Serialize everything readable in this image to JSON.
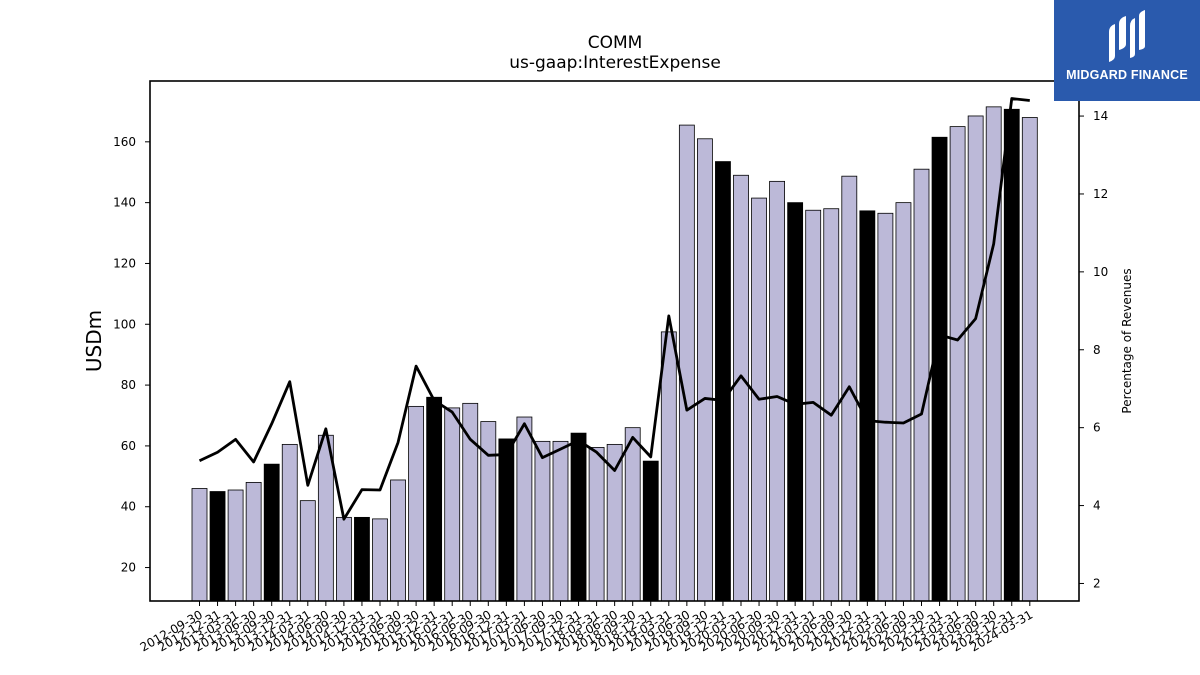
{
  "chart_data": {
    "type": "bar",
    "title": "COMM",
    "subtitle": "us-gaap:InterestExpense",
    "ylabel": "USDm",
    "y2label": "Percentage of Revenues",
    "ylim": [
      9,
      180
    ],
    "y2lim": [
      1.55,
      14.9
    ],
    "yticks": [
      20,
      40,
      60,
      80,
      100,
      120,
      140,
      160
    ],
    "y2ticks": [
      2,
      4,
      6,
      8,
      10,
      12,
      14
    ],
    "categories": [
      "2012-09-30",
      "2012-12-31",
      "2013-03-31",
      "2013-06-30",
      "2013-09-30",
      "2013-12-31",
      "2014-03-31",
      "2014-06-30",
      "2014-09-30",
      "2014-12-31",
      "2015-03-31",
      "2015-06-30",
      "2015-09-30",
      "2015-12-31",
      "2016-03-31",
      "2016-06-30",
      "2016-09-30",
      "2016-12-31",
      "2017-03-31",
      "2017-06-30",
      "2017-09-30",
      "2017-12-31",
      "2018-03-31",
      "2018-06-30",
      "2018-09-30",
      "2018-12-31",
      "2019-03-31",
      "2019-06-30",
      "2019-09-30",
      "2019-12-31",
      "2020-03-31",
      "2020-06-30",
      "2020-09-30",
      "2020-12-31",
      "2021-03-31",
      "2021-06-30",
      "2021-09-30",
      "2021-12-31",
      "2022-03-31",
      "2022-06-30",
      "2022-09-30",
      "2022-12-31",
      "2023-03-31",
      "2023-06-30",
      "2023-09-30",
      "2023-12-31",
      "2024-03-31"
    ],
    "xtick_labels": [
      "2012-09-30",
      "2012-12-31",
      "2013-03-31",
      "2013-06-30",
      "2013-09-30",
      "2013-12-31",
      "2014-03-31",
      "2014-06-30",
      "2014-09-30",
      "2014-12-31",
      "2015-03-31",
      "2015-06-30",
      "2015-09-30",
      "2015-12-31",
      "2016-03-31",
      "2016-06-30",
      "2016-09-30",
      "2016-12-31",
      "2017-03-31",
      "2017-06-30",
      "2017-09-30",
      "2017-12-31",
      "2018-03-31",
      "2018-06-30",
      "2018-09-30",
      "2018-12-31",
      "2019-03-31",
      "2019-06-30",
      "2019-09-30",
      "2019-12-31",
      "2020-03-31",
      "2020-06-30",
      "2020-09-30",
      "2020-12-31",
      "2021-03-31",
      "2021-06-30",
      "2021-09-30",
      "2021-12-31",
      "2022-03-31",
      "2022-06-30",
      "2022-09-30",
      "2022-12-31",
      "2023-03-31",
      "2023-06-30",
      "2023-09-30",
      "2023-12-31",
      "2024-03-31"
    ],
    "series": [
      {
        "type": "bar",
        "axis": "left",
        "values": [
          46,
          45,
          45.5,
          48,
          54,
          60.5,
          42,
          63.5,
          36.5,
          36.5,
          36,
          48.8,
          73,
          76,
          72.5,
          74,
          68,
          62.3,
          69.5,
          61.5,
          61.5,
          64.2,
          59.5,
          60.5,
          66,
          55,
          97.5,
          165.5,
          161,
          153.5,
          149,
          141.5,
          147,
          140,
          137.5,
          138,
          148.7,
          137.3,
          136.5,
          140,
          151,
          161.5,
          165,
          168.5,
          171.5,
          170.7,
          168
        ],
        "highlighted": [
          false,
          true,
          false,
          false,
          true,
          false,
          false,
          false,
          false,
          true,
          false,
          false,
          false,
          true,
          false,
          false,
          false,
          true,
          false,
          false,
          false,
          true,
          false,
          false,
          false,
          true,
          false,
          false,
          false,
          true,
          false,
          false,
          false,
          true,
          false,
          false,
          false,
          true,
          false,
          false,
          false,
          true,
          false,
          false,
          false,
          true,
          false
        ]
      },
      {
        "type": "line",
        "axis": "right",
        "values": [
          5.15,
          5.37,
          5.7,
          5.12,
          6.1,
          7.18,
          4.52,
          5.97,
          3.65,
          4.41,
          4.4,
          5.62,
          7.58,
          6.7,
          6.4,
          5.7,
          5.29,
          5.31,
          6.1,
          5.23,
          5.45,
          5.67,
          5.37,
          4.9,
          5.75,
          5.25,
          8.87,
          6.45,
          6.75,
          6.7,
          7.33,
          6.73,
          6.8,
          6.6,
          6.65,
          6.32,
          7.05,
          6.18,
          6.14,
          6.12,
          6.35,
          8.38,
          8.25,
          8.8,
          10.72,
          14.45,
          14.4
        ]
      }
    ],
    "colors": {
      "bar": "#bcb9d8",
      "bar_highlight": "#000000",
      "edge": "#000000",
      "line": "#000000"
    },
    "grid": false,
    "legend": "none"
  },
  "logo": {
    "text": "MIDGARD FINANCE",
    "bg": "#2a5aad"
  }
}
